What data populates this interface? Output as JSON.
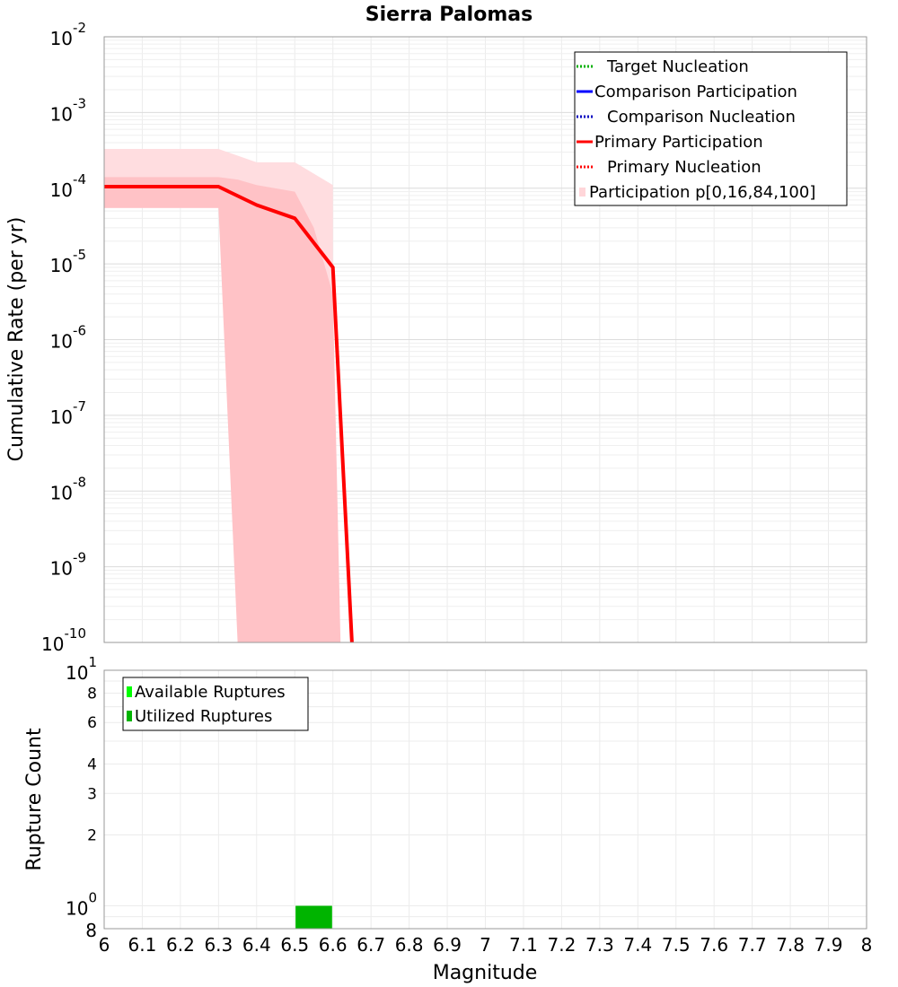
{
  "chart_data": [
    {
      "type": "line",
      "title": "Sierra Palomas",
      "xlabel": "",
      "ylabel": "Cumulative Rate (per yr)",
      "xlim": [
        6,
        8
      ],
      "ylim": [
        1e-10,
        0.01
      ],
      "yscale": "log",
      "grid": true,
      "legend_position": "top-right",
      "y_tick_exponents": [
        "-10",
        "-9",
        "-8",
        "-7",
        "-6",
        "-5",
        "-4",
        "-3",
        "-2"
      ],
      "legend": [
        {
          "label": "Target Nucleation",
          "color": "#00b000",
          "style": "dotted"
        },
        {
          "label": "Comparison Participation",
          "color": "#0000ff",
          "style": "solid"
        },
        {
          "label": "Comparison Nucleation",
          "color": "#0000c0",
          "style": "dotted"
        },
        {
          "label": "Primary Participation",
          "color": "#ff0000",
          "style": "solid"
        },
        {
          "label": "Primary Nucleation",
          "color": "#ff0000",
          "style": "dotted"
        },
        {
          "label": "Participation p[0,16,84,100]",
          "color": "#ffd6d9",
          "style": "fill"
        }
      ],
      "series": [
        {
          "name": "Primary Participation",
          "color": "#ff0000",
          "x": [
            6.0,
            6.1,
            6.2,
            6.3,
            6.4,
            6.5,
            6.6,
            6.65
          ],
          "y": [
            0.000105,
            0.000105,
            0.000105,
            0.000105,
            6e-05,
            4e-05,
            9e-06,
            1e-10
          ]
        }
      ],
      "bands": [
        {
          "name": "p0-p100",
          "color": "#ffdde0",
          "x": [
            6.0,
            6.3,
            6.4,
            6.5,
            6.6,
            6.6
          ],
          "upper": [
            0.00033,
            0.00033,
            0.00022,
            0.00022,
            0.00011,
            1e-10
          ],
          "lower": [
            5.5e-05,
            5.5e-05,
            1e-10,
            1e-10,
            1e-10,
            1e-10
          ]
        },
        {
          "name": "p16-p84",
          "color": "#ffc2c6",
          "x": [
            6.0,
            6.3,
            6.35,
            6.4,
            6.5,
            6.55,
            6.6,
            6.62
          ],
          "upper": [
            0.00014,
            0.00014,
            0.00013,
            0.00011,
            9e-05,
            3e-05,
            4e-06,
            1e-10
          ],
          "lower": [
            5.5e-05,
            5.5e-05,
            1e-10,
            1e-10,
            1e-10,
            1e-10,
            1e-10,
            1e-10
          ]
        }
      ]
    },
    {
      "type": "bar",
      "xlabel": "Magnitude",
      "ylabel": "Rupture Count",
      "xlim": [
        6,
        8
      ],
      "ylim": [
        0.8,
        10
      ],
      "yscale": "log",
      "grid": true,
      "legend_position": "top-left",
      "x_ticks": [
        "6",
        "6.1",
        "6.2",
        "6.3",
        "6.4",
        "6.5",
        "6.6",
        "6.7",
        "6.8",
        "6.9",
        "7",
        "7.1",
        "7.2",
        "7.3",
        "7.4",
        "7.5",
        "7.6",
        "7.7",
        "7.8",
        "7.9",
        "8"
      ],
      "y_ticks": [
        {
          "value": 10,
          "base": "10",
          "exp": "1"
        },
        {
          "value": 8,
          "label": "8"
        },
        {
          "value": 6,
          "label": "6"
        },
        {
          "value": 4,
          "label": "4"
        },
        {
          "value": 3,
          "label": "3"
        },
        {
          "value": 2,
          "label": "2"
        },
        {
          "value": 1,
          "base": "10",
          "exp": "0"
        },
        {
          "value": 0.8,
          "label": "8"
        }
      ],
      "legend": [
        {
          "label": "Available Ruptures",
          "color": "#00ff00"
        },
        {
          "label": "Utilized Ruptures",
          "color": "#00b400"
        }
      ],
      "series": [
        {
          "name": "Available Ruptures",
          "color": "#00ff00",
          "bars": [
            {
              "x0": 6.5,
              "x1": 6.6,
              "value": 1
            }
          ]
        },
        {
          "name": "Utilized Ruptures",
          "color": "#00b400",
          "bars": [
            {
              "x0": 6.5,
              "x1": 6.6,
              "value": 1
            }
          ]
        }
      ]
    }
  ]
}
